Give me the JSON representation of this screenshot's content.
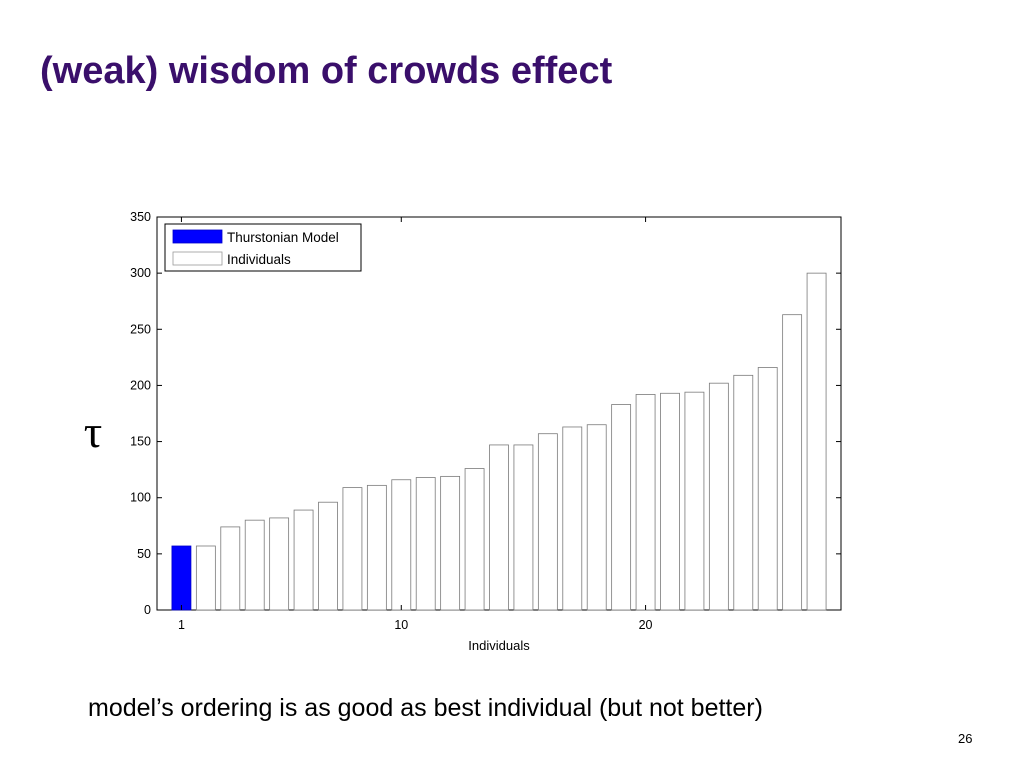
{
  "slide": {
    "title": "(weak) wisdom of crowds effect",
    "caption": "model’s ordering is as good as best individual (but not better)",
    "page_number": "26"
  },
  "chart_data": {
    "type": "bar",
    "xlabel": "Individuals",
    "ylabel": "τ",
    "ylim": [
      0,
      350
    ],
    "yticks": [
      0,
      50,
      100,
      150,
      200,
      250,
      300,
      350
    ],
    "xlim": [
      0,
      28
    ],
    "xticks": [
      1,
      10,
      20
    ],
    "grid": false,
    "legend_position": "top-left",
    "series": [
      {
        "name": "Thurstonian Model",
        "color": "#0000ff",
        "x": [
          1
        ],
        "values": [
          57
        ]
      },
      {
        "name": "Individuals",
        "color": "#ffffff",
        "x": [
          2,
          3,
          4,
          5,
          6,
          7,
          8,
          9,
          10,
          11,
          12,
          13,
          14,
          15,
          16,
          17,
          18,
          19,
          20,
          21,
          22,
          23,
          24,
          25,
          26,
          27
        ],
        "values": [
          57,
          74,
          80,
          82,
          89,
          96,
          109,
          111,
          116,
          118,
          119,
          126,
          147,
          147,
          157,
          163,
          165,
          183,
          192,
          193,
          194,
          202,
          209,
          216,
          263,
          300
        ]
      }
    ]
  }
}
